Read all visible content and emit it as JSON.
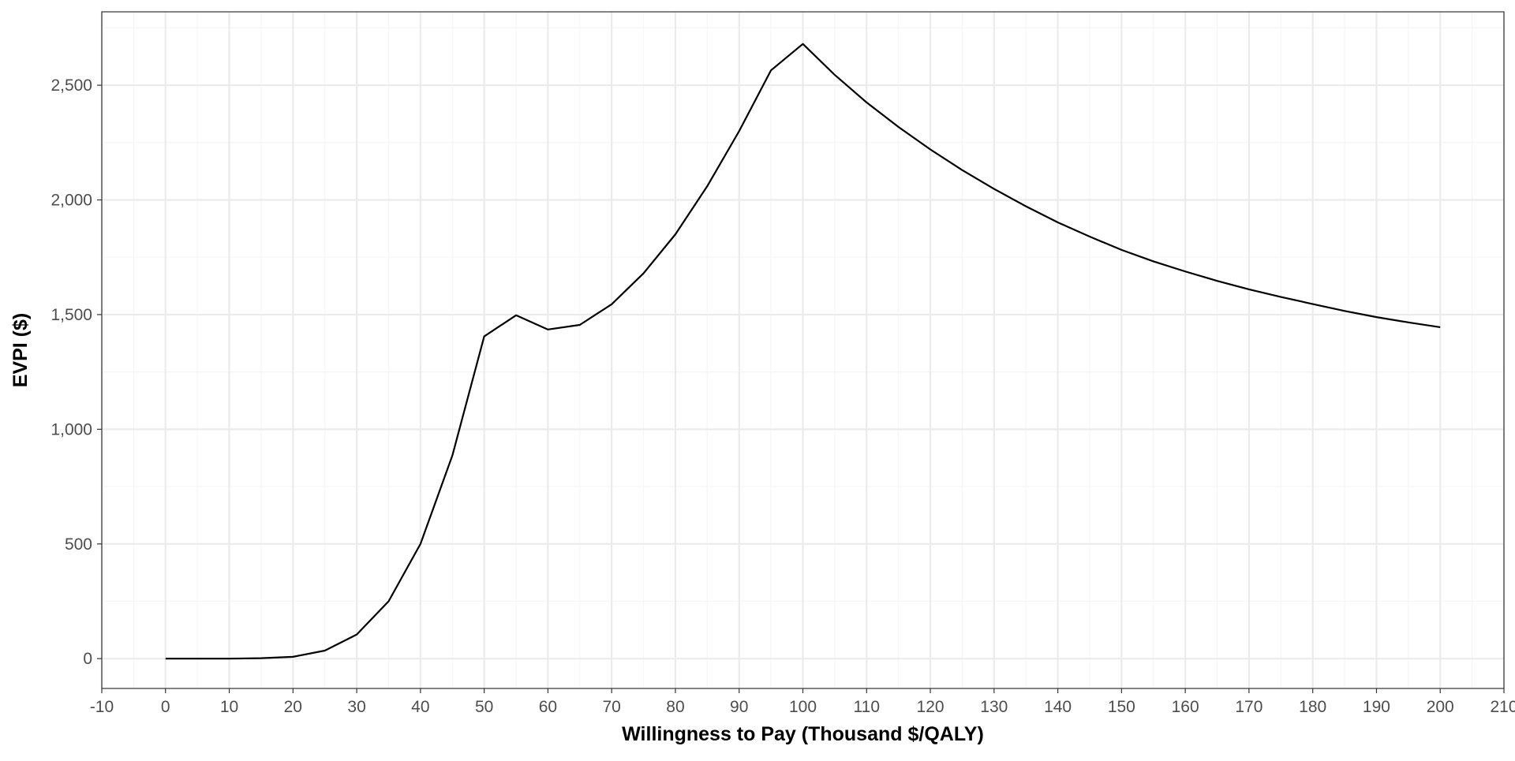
{
  "chart_data": {
    "type": "line",
    "title": "",
    "xlabel": "Willingness to Pay (Thousand $/QALY)",
    "ylabel": "EVPI ($)",
    "xlim": [
      -10,
      210
    ],
    "ylim": [
      -130,
      2820
    ],
    "x_ticks": [
      -10,
      0,
      10,
      20,
      30,
      40,
      50,
      60,
      70,
      80,
      90,
      100,
      110,
      120,
      130,
      140,
      150,
      160,
      170,
      180,
      190,
      200,
      210
    ],
    "x_tick_labels": [
      "-10",
      "0",
      "10",
      "20",
      "30",
      "40",
      "50",
      "60",
      "70",
      "80",
      "90",
      "100",
      "110",
      "120",
      "130",
      "140",
      "150",
      "160",
      "170",
      "180",
      "190",
      "200",
      "210"
    ],
    "x_minor_ticks": [
      -5,
      5,
      15,
      25,
      35,
      45,
      55,
      65,
      75,
      85,
      95,
      105,
      115,
      125,
      135,
      145,
      155,
      165,
      175,
      185,
      195,
      205
    ],
    "y_ticks": [
      0,
      500,
      1000,
      1500,
      2000,
      2500
    ],
    "y_tick_labels": [
      "0",
      "500",
      "1,000",
      "1,500",
      "2,000",
      "2,500"
    ],
    "y_minor_ticks": [
      250,
      750,
      1250,
      1750,
      2250,
      2750
    ],
    "grid": true,
    "legend": "none",
    "colors": {
      "line": "#000000",
      "grid_major": "#ebebeb",
      "grid_minor": "#f5f5f5",
      "panel_border": "#333333",
      "tick_label": "#4d4d4d"
    },
    "series": [
      {
        "x": [
          0,
          5,
          10,
          15,
          20,
          25,
          30,
          35,
          40,
          45,
          50,
          55,
          60,
          65,
          70,
          75,
          80,
          85,
          90,
          95,
          100,
          105,
          110,
          115,
          120,
          125,
          130,
          135,
          140,
          145,
          150,
          155,
          160,
          165,
          170,
          175,
          180,
          185,
          190,
          195,
          200
        ],
        "y": [
          0,
          0,
          0,
          2,
          8,
          35,
          105,
          250,
          500,
          885,
          1405,
          1497,
          1435,
          1455,
          1545,
          1680,
          1850,
          2060,
          2300,
          2565,
          2680,
          2545,
          2425,
          2318,
          2220,
          2130,
          2048,
          1972,
          1902,
          1840,
          1782,
          1732,
          1688,
          1647,
          1610,
          1577,
          1546,
          1516,
          1489,
          1466,
          1445
        ]
      }
    ]
  }
}
